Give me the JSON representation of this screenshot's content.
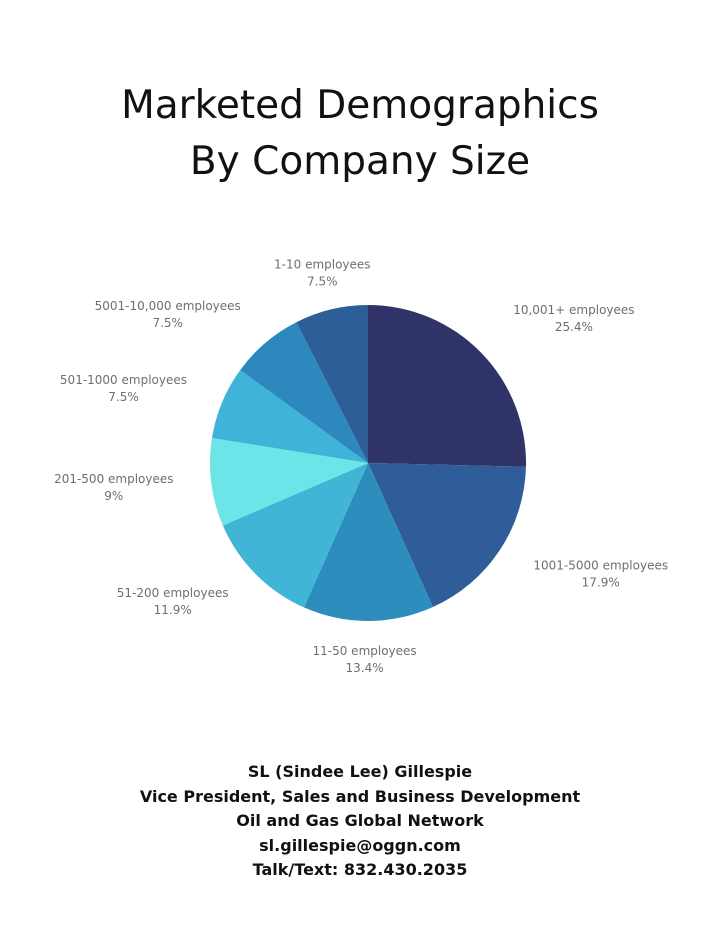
{
  "chart_data": {
    "type": "pie",
    "title_lines": [
      "Marketed Demographics",
      "By Company Size"
    ],
    "start_angle_deg": 0,
    "direction": "clockwise",
    "slices": [
      {
        "label": "10,001+ employees",
        "value": 25.4,
        "value_label": "25.4%",
        "color": "#2f3368"
      },
      {
        "label": "1001-5000 employees",
        "value": 17.9,
        "value_label": "17.9%",
        "color": "#2e5d99"
      },
      {
        "label": "11-50 employees",
        "value": 13.4,
        "value_label": "13.4%",
        "color": "#2d8dbd"
      },
      {
        "label": "51-200 employees",
        "value": 11.9,
        "value_label": "11.9%",
        "color": "#41b5d6"
      },
      {
        "label": "201-500 employees",
        "value": 9,
        "value_label": "9%",
        "color": "#6ce4e8"
      },
      {
        "label": "501-1000 employees",
        "value": 7.5,
        "value_label": "7.5%",
        "color": "#40b3d8"
      },
      {
        "label": "5001-10,000 employees",
        "value": 7.5,
        "value_label": "7.5%",
        "color": "#2c88bd"
      },
      {
        "label": "1-10 employees",
        "value": 7.5,
        "value_label": "7.5%",
        "color": "#2d5e98"
      }
    ]
  },
  "contact": {
    "name": "SL (Sindee Lee) Gillespie",
    "position": "Vice President, Sales and Business Development",
    "organization": "Oil and Gas Global Network",
    "email": "sl.gillespie@oggn.com",
    "phone": "Talk/Text: 832.430.2035"
  }
}
